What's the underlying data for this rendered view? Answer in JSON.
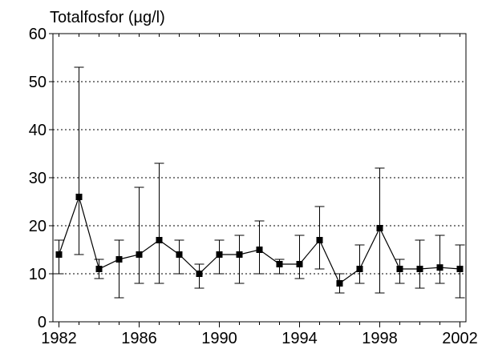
{
  "chart_data": {
    "type": "errorline",
    "title": "Totalfosfor (µg/l)",
    "x": [
      1982,
      1983,
      1984,
      1985,
      1986,
      1987,
      1988,
      1989,
      1990,
      1991,
      1992,
      1993,
      1994,
      1995,
      1996,
      1997,
      1998,
      1999,
      2000,
      2001,
      2002
    ],
    "series": [
      {
        "color": "#000000",
        "values": [
          14,
          26,
          11,
          13,
          14,
          17,
          14,
          10,
          14,
          14,
          15,
          12,
          12,
          17,
          8,
          11,
          19.5,
          11,
          11,
          11.3,
          11
        ],
        "lower": [
          10,
          14,
          9,
          5,
          8,
          8,
          10,
          7,
          10,
          8,
          10,
          10,
          9,
          11,
          6,
          8,
          6,
          8,
          7,
          8,
          5
        ],
        "upper": [
          17,
          53,
          13,
          17,
          28,
          33,
          17,
          12,
          17,
          18,
          21,
          13,
          18,
          24,
          10,
          16,
          32,
          13,
          17,
          18,
          16
        ]
      }
    ],
    "xlim": [
      1981.7,
      2002.3
    ],
    "xticks": [
      1982,
      1986,
      1990,
      1994,
      1998,
      2002
    ],
    "ylim": [
      0,
      60
    ],
    "yticks": [
      0,
      10,
      20,
      30,
      40,
      50,
      60
    ],
    "grid": true
  }
}
